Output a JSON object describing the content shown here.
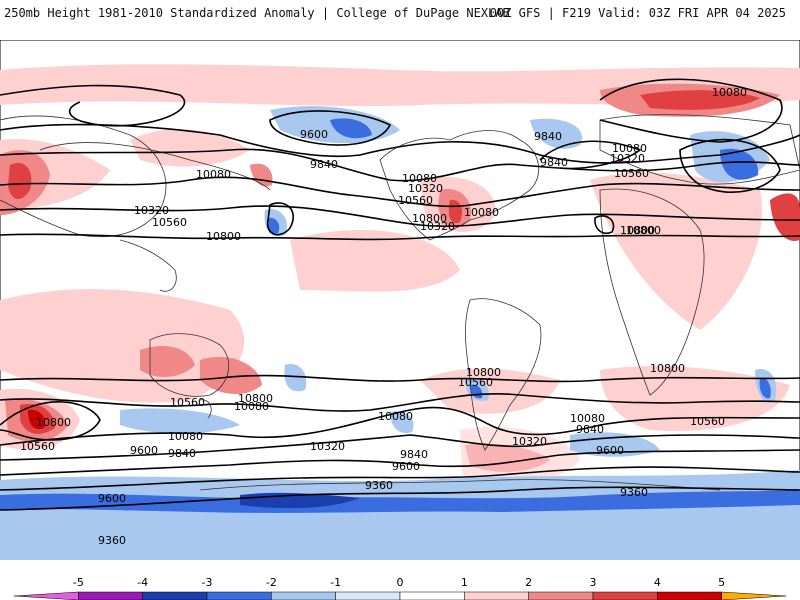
{
  "header": {
    "left": "250mb Height 1981-2010 Standardized Anomaly | College of DuPage NEXLAB",
    "right": "00Z GFS | F219 Valid: 03Z FRI APR 04 2025"
  },
  "contours": [
    {
      "label": "9600"
    },
    {
      "label": "9840"
    },
    {
      "label": "10080"
    },
    {
      "label": "10320"
    },
    {
      "label": "10560"
    },
    {
      "label": "10800"
    },
    {
      "label": "10080"
    },
    {
      "label": "10320"
    },
    {
      "label": "10560"
    },
    {
      "label": "10800"
    },
    {
      "label": "10080"
    },
    {
      "label": "9840"
    },
    {
      "label": "10080"
    },
    {
      "label": "10320"
    },
    {
      "label": "10560"
    },
    {
      "label": "10800"
    },
    {
      "label": "10800"
    },
    {
      "label": "10560"
    },
    {
      "label": "10800"
    },
    {
      "label": "10560"
    },
    {
      "label": "10800"
    },
    {
      "label": "10320"
    },
    {
      "label": "10080"
    },
    {
      "label": "9840"
    },
    {
      "label": "9600"
    },
    {
      "label": "10080"
    },
    {
      "label": "10320"
    },
    {
      "label": "9840"
    },
    {
      "label": "9600"
    },
    {
      "label": "9360"
    },
    {
      "label": "10800"
    },
    {
      "label": "10560"
    },
    {
      "label": "10080"
    },
    {
      "label": "9840"
    },
    {
      "label": "9600"
    },
    {
      "label": "9360"
    },
    {
      "label": "10560"
    },
    {
      "label": "10080"
    },
    {
      "label": "9840"
    },
    {
      "label": "9600"
    },
    {
      "label": "10080"
    },
    {
      "label": "10320"
    },
    {
      "label": "9360"
    },
    {
      "label": "10800"
    }
  ],
  "colorbar": {
    "ticks": [
      "-5",
      "-4",
      "-3",
      "-2",
      "-1",
      "0",
      "1",
      "2",
      "3",
      "4",
      "5"
    ],
    "colors": [
      "#e060e0",
      "#9a1ab8",
      "#1c3fb0",
      "#3a6ee0",
      "#a8c8f0",
      "#d8e8fa",
      "#ffffff",
      "#ffd0d0",
      "#f08888",
      "#e04040",
      "#c80000",
      "#ffaa00"
    ]
  }
}
